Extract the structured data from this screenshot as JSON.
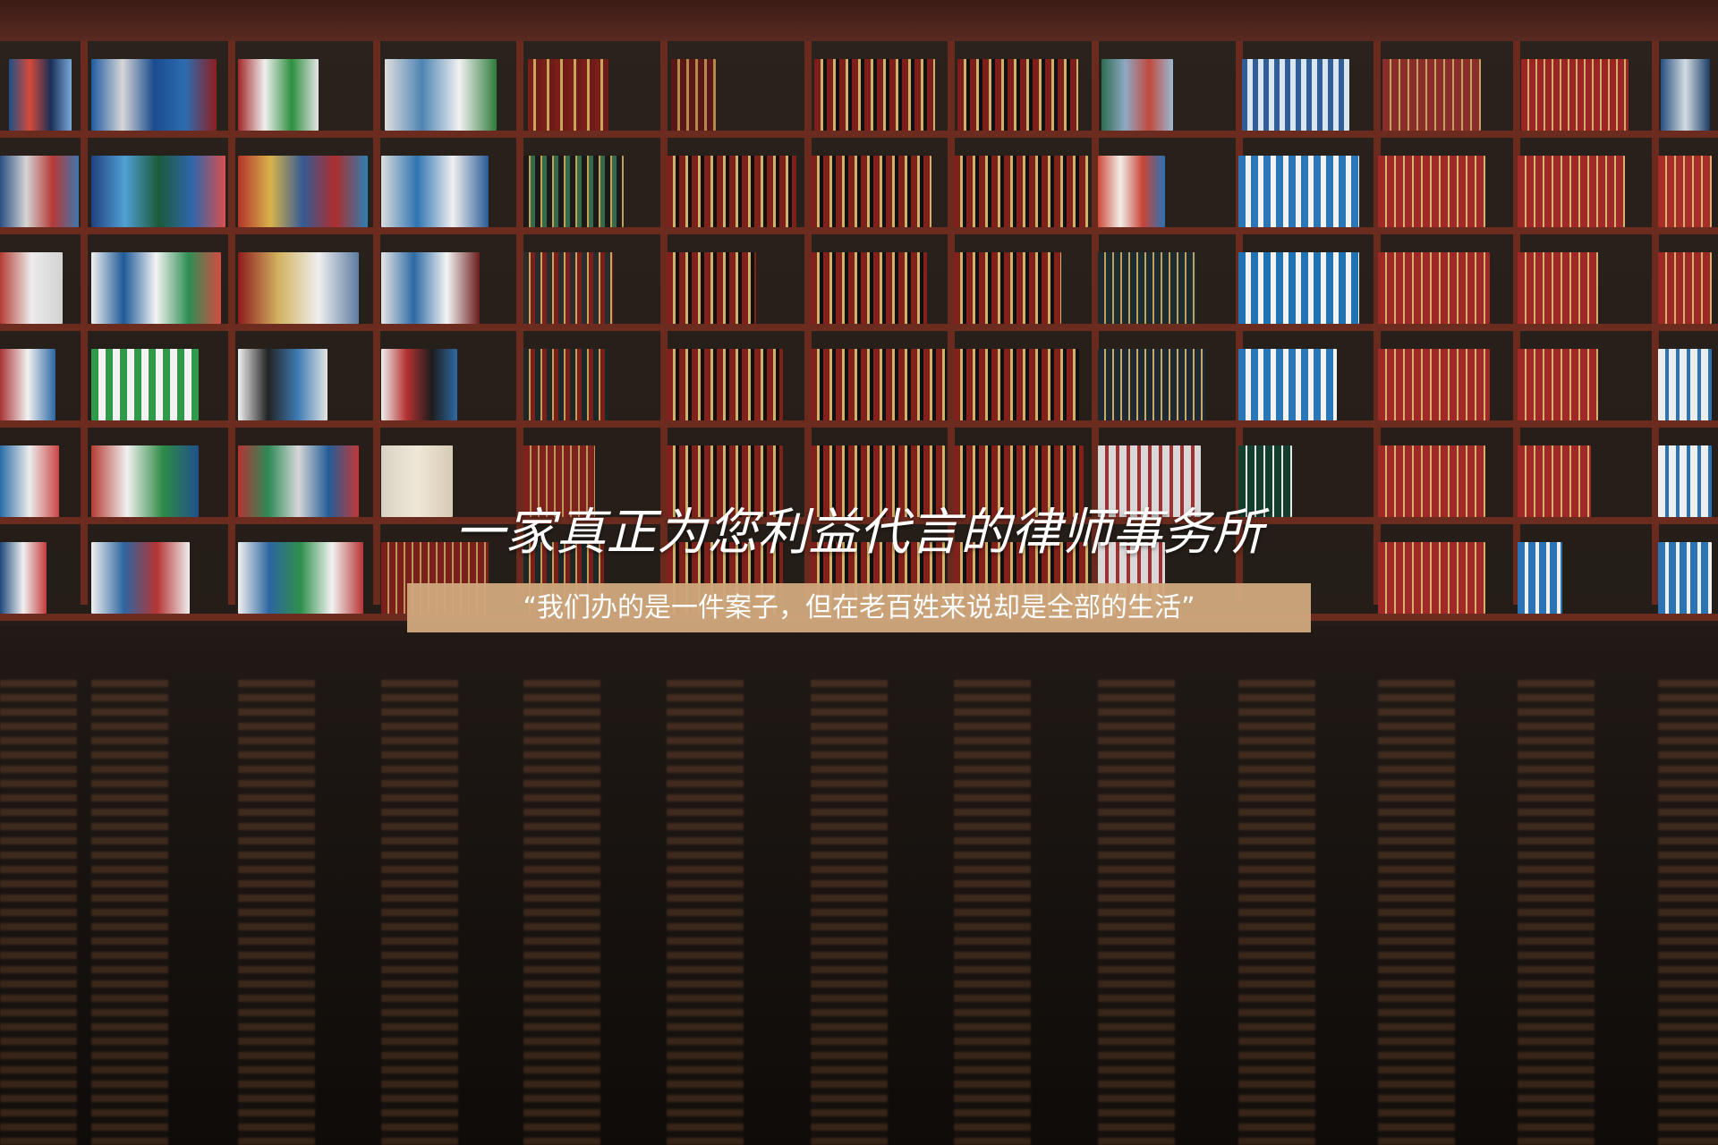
{
  "hero": {
    "headline": "一家真正为您利益代言的律师事务所",
    "tagline": "“我们办的是一件案子，但在老百姓来说却是全部的生活”"
  },
  "colors": {
    "tagline_background": "#cea77c",
    "headline_text": "#ffffff",
    "shelf_wood": "#6b2b1f",
    "floor_dark": "#201914"
  }
}
